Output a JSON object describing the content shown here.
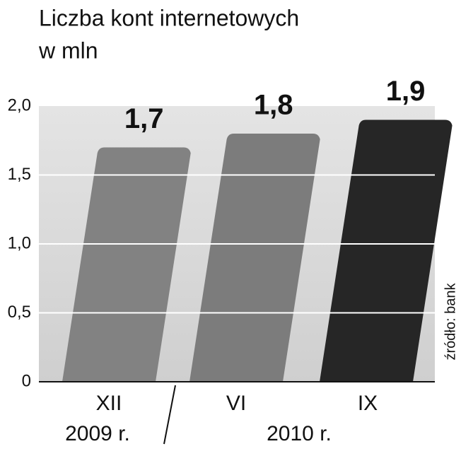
{
  "chart_data": {
    "type": "bar",
    "title": "Liczba kont internetowych",
    "subtitle": "w mln",
    "categories": [
      "XII",
      "VI",
      "IX"
    ],
    "values": [
      1.7,
      1.8,
      1.9
    ],
    "value_labels": [
      "1,7",
      "1,8",
      "1,9"
    ],
    "colors": [
      "#828282",
      "#7c7c7c",
      "#262626"
    ],
    "year_labels": [
      "2009 r.",
      "2010 r."
    ],
    "source": "źródło: bank",
    "ylim": [
      0,
      2.0
    ],
    "yticks": [
      0,
      {
        "value": 0.5,
        "label": "0,5"
      },
      {
        "value": 1.0,
        "label": "1,0"
      },
      {
        "value": 1.5,
        "label": "1,5"
      },
      {
        "value": 2.0,
        "label": "2,0"
      }
    ],
    "grid": true
  }
}
